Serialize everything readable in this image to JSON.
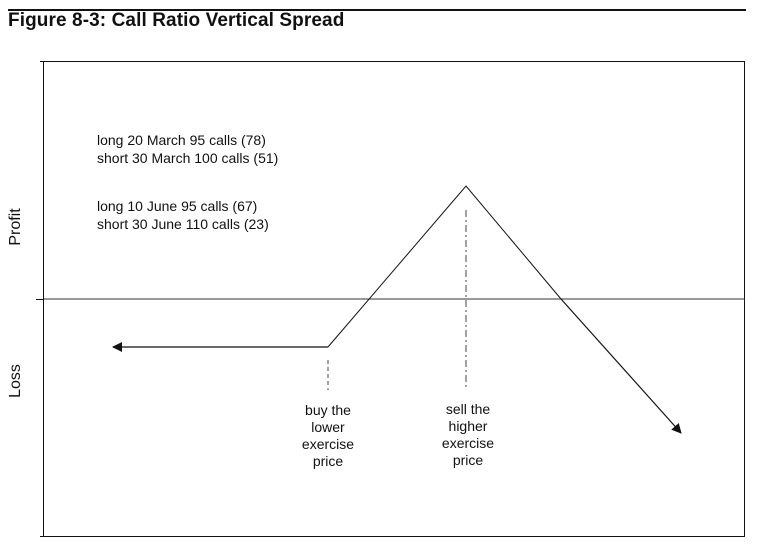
{
  "figure": {
    "title": "Figure 8-3: Call Ratio Vertical Spread"
  },
  "axes": {
    "profit_label": "Profit",
    "loss_label": "Loss"
  },
  "positions": [
    "long 20 March 95 calls (78)",
    "short 30 March 100 calls (51)",
    "long 10 June 95 calls (67)",
    "short 30 June 110 calls (23)"
  ],
  "annotations": {
    "lower": [
      "buy the",
      "lower",
      "exercise",
      "price"
    ],
    "higher": [
      "sell the",
      "higher",
      "exercise",
      "price"
    ]
  }
}
